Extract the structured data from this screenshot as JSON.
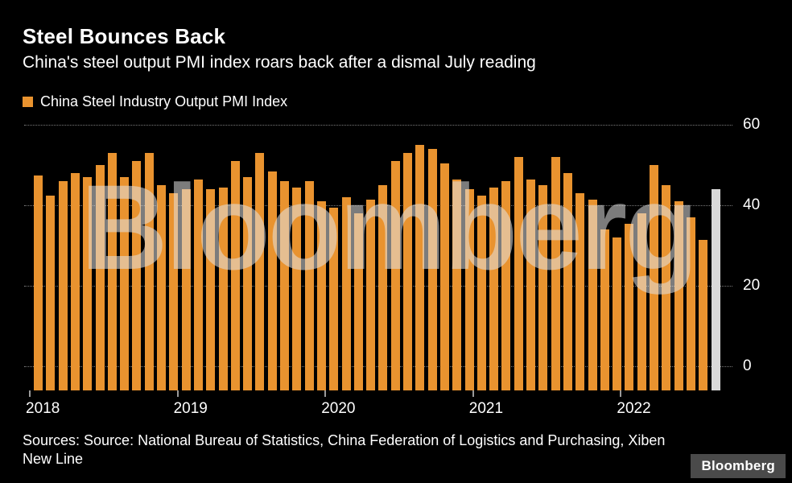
{
  "header": {
    "title": "Steel Bounces Back",
    "subtitle": "China's steel output PMI index roars back after a dismal July reading"
  },
  "legend": {
    "label": "China Steel Industry Output PMI Index"
  },
  "watermark": {
    "text": "Bloomberg"
  },
  "footer": {
    "sources": "Sources: Source: National Bureau of Statistics, China Federation of Logistics and Purchasing, Xiben New Line",
    "logo": "Bloomberg"
  },
  "colors": {
    "background": "#000000",
    "bar": "#E9932F",
    "highlight_bar": "#D9D9D9",
    "gridline": "#7A7A7A",
    "text": "#FFFFFF"
  },
  "chart_data": {
    "type": "bar",
    "title": "Steel Bounces Back",
    "series_name": "China Steel Industry Output PMI Index",
    "x": [
      "2018-01",
      "2018-02",
      "2018-03",
      "2018-04",
      "2018-05",
      "2018-06",
      "2018-07",
      "2018-08",
      "2018-09",
      "2018-10",
      "2018-11",
      "2018-12",
      "2019-01",
      "2019-02",
      "2019-03",
      "2019-04",
      "2019-05",
      "2019-06",
      "2019-07",
      "2019-08",
      "2019-09",
      "2019-10",
      "2019-11",
      "2019-12",
      "2020-01",
      "2020-02",
      "2020-03",
      "2020-04",
      "2020-05",
      "2020-06",
      "2020-07",
      "2020-08",
      "2020-09",
      "2020-10",
      "2020-11",
      "2020-12",
      "2021-01",
      "2021-02",
      "2021-03",
      "2021-04",
      "2021-05",
      "2021-06",
      "2021-07",
      "2021-08",
      "2021-09",
      "2021-10",
      "2021-11",
      "2021-12",
      "2022-01",
      "2022-02",
      "2022-03",
      "2022-04",
      "2022-05",
      "2022-06",
      "2022-07",
      "2022-08"
    ],
    "values": [
      47.5,
      42.5,
      46,
      48,
      47,
      50,
      53,
      47,
      51,
      53,
      45,
      43,
      44,
      46.5,
      44,
      44.5,
      51,
      47,
      53,
      48.5,
      46,
      44.5,
      46,
      41,
      39.5,
      42,
      38,
      41.5,
      45,
      51,
      53,
      55,
      54,
      50.5,
      46.5,
      44,
      42.5,
      44.5,
      46,
      52,
      46.5,
      45,
      52,
      48,
      43,
      41.5,
      34,
      32,
      35.5,
      38,
      50,
      45,
      41,
      37,
      31.5,
      44
    ],
    "highlight_index": 55,
    "bar_color": "#E9932F",
    "highlight_color": "#D9D9D9",
    "y_ticks": [
      60,
      40,
      20,
      0
    ],
    "ylim": [
      -6,
      62
    ],
    "x_tick_labels": [
      "2018",
      "2019",
      "2020",
      "2021",
      "2022"
    ],
    "xlabel": "",
    "ylabel": "",
    "grid": "horizontal-dotted",
    "legend_position": "top-left",
    "y_axis_side": "right"
  }
}
